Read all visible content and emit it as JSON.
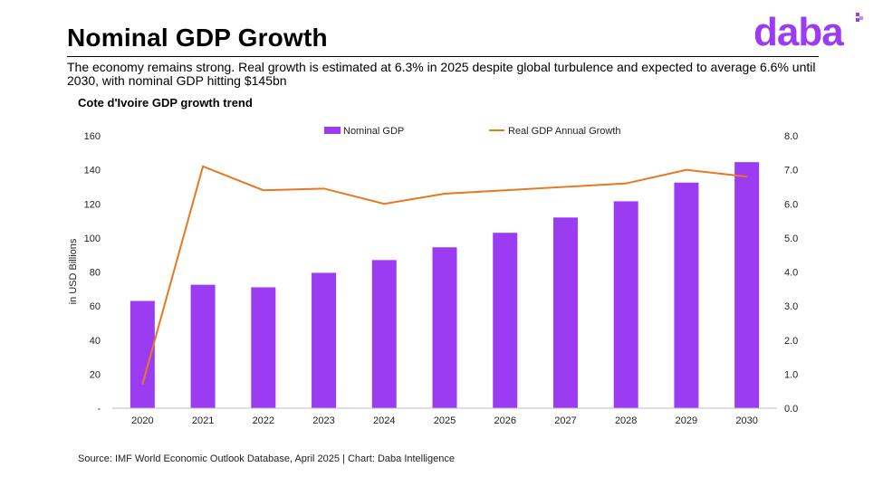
{
  "header": {
    "title": "Nominal GDP Growth",
    "subtitle": "The economy remains strong. Real growth is estimated at 6.3% in 2025 despite global turbulence and expected to average 6.6% until 2030, with nominal GDP hitting $145bn",
    "logo_text": "daba"
  },
  "colors": {
    "bar": "#9b3cf2",
    "line": "#e87722",
    "logo": "#9b3cf2"
  },
  "chart_data": {
    "type": "bar",
    "title": "Cote d'Ivoire GDP growth trend",
    "categories": [
      "2020",
      "2021",
      "2022",
      "2023",
      "2024",
      "2025",
      "2026",
      "2027",
      "2028",
      "2029",
      "2030"
    ],
    "series": [
      {
        "name": "Nominal GDP",
        "type": "bar",
        "axis": "left",
        "values": [
          63,
          72.5,
          71,
          79.5,
          87,
          94.5,
          103,
          112,
          121.5,
          132.5,
          144.5
        ]
      },
      {
        "name": "Real GDP Annual Growth",
        "type": "line",
        "axis": "right",
        "values": [
          0.7,
          7.1,
          6.4,
          6.45,
          6.0,
          6.3,
          6.4,
          6.5,
          6.6,
          7.0,
          6.8
        ]
      }
    ],
    "ylabel": "in USD Billions",
    "ylim": [
      0,
      160
    ],
    "y_ticks": [
      "-",
      "20",
      "40",
      "60",
      "80",
      "100",
      "120",
      "140",
      "160"
    ],
    "y2lim": [
      0,
      8
    ],
    "y2_ticks": [
      "0.0",
      "1.0",
      "2.0",
      "3.0",
      "4.0",
      "5.0",
      "6.0",
      "7.0",
      "8.0"
    ],
    "legend": "top",
    "grid": false
  },
  "footer": {
    "source": "Source: IMF World Economic Outlook Database, April 2025  | Chart: Daba Intelligence"
  }
}
